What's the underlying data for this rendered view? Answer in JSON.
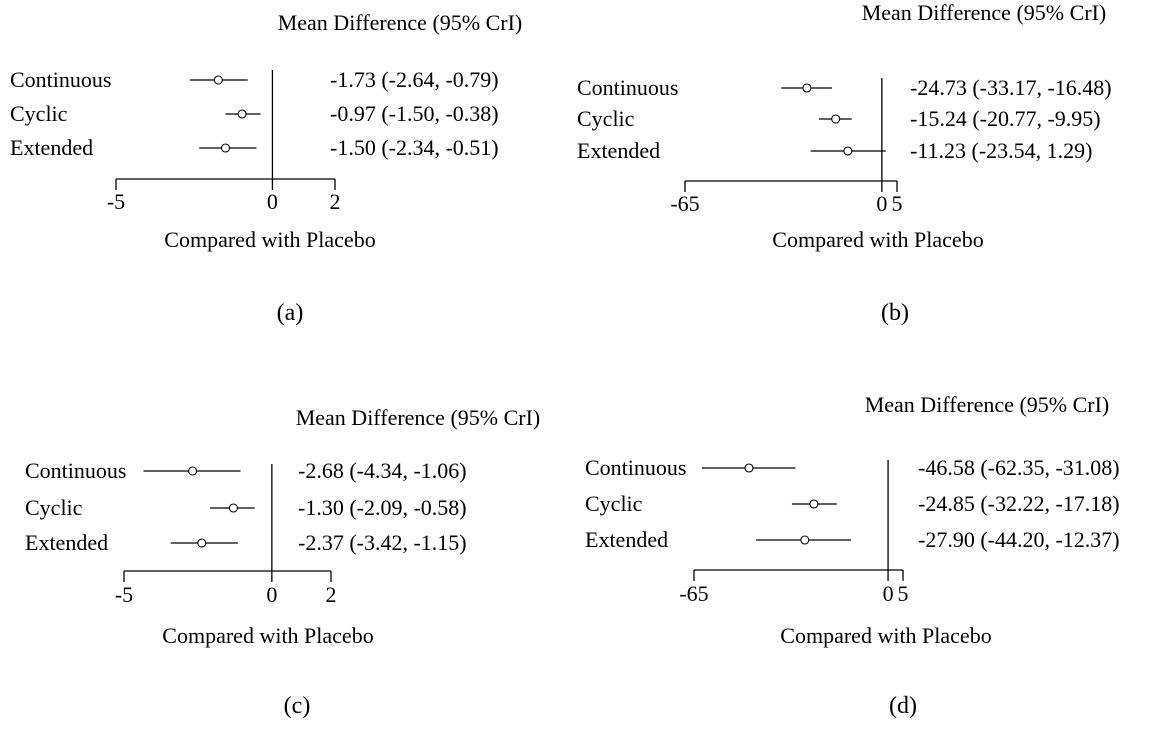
{
  "chart_data": [
    {
      "panel": "(a)",
      "type": "forest",
      "header": "Mean Difference (95% CrI)",
      "xlabel": "Compared with Placebo",
      "xlim": [
        -5,
        2
      ],
      "ticks": [
        -5,
        0,
        2
      ],
      "reference_line": 0,
      "rows": [
        {
          "label": "Continuous",
          "estimate": -1.73,
          "lower": -2.64,
          "upper": -0.79,
          "text": "-1.73 (-2.64, -0.79)"
        },
        {
          "label": "Cyclic",
          "estimate": -0.97,
          "lower": -1.5,
          "upper": -0.38,
          "text": "-0.97 (-1.50, -0.38)"
        },
        {
          "label": "Extended",
          "estimate": -1.5,
          "lower": -2.34,
          "upper": -0.51,
          "text": "-1.50 (-2.34, -0.51)"
        }
      ]
    },
    {
      "panel": "(b)",
      "type": "forest",
      "header": "Mean Difference (95% CrI)",
      "xlabel": "Compared with Placebo",
      "xlim": [
        -65,
        5
      ],
      "ticks": [
        -65,
        0,
        5
      ],
      "reference_line": 0,
      "rows": [
        {
          "label": "Continuous",
          "estimate": -24.73,
          "lower": -33.17,
          "upper": -16.48,
          "text": "-24.73 (-33.17, -16.48)"
        },
        {
          "label": "Cyclic",
          "estimate": -15.24,
          "lower": -20.77,
          "upper": -9.95,
          "text": "-15.24 (-20.77, -9.95)"
        },
        {
          "label": "Extended",
          "estimate": -11.23,
          "lower": -23.54,
          "upper": 1.29,
          "text": "-11.23 (-23.54, 1.29)"
        }
      ]
    },
    {
      "panel": "(c)",
      "type": "forest",
      "header": "Mean Difference (95% CrI)",
      "xlabel": "Compared with Placebo",
      "xlim": [
        -5,
        2
      ],
      "ticks": [
        -5,
        0,
        2
      ],
      "reference_line": 0,
      "rows": [
        {
          "label": "Continuous",
          "estimate": -2.68,
          "lower": -4.34,
          "upper": -1.06,
          "text": "-2.68 (-4.34, -1.06)"
        },
        {
          "label": "Cyclic",
          "estimate": -1.3,
          "lower": -2.09,
          "upper": -0.58,
          "text": "-1.30 (-2.09, -0.58)"
        },
        {
          "label": "Extended",
          "estimate": -2.37,
          "lower": -3.42,
          "upper": -1.15,
          "text": "-2.37 (-3.42, -1.15)"
        }
      ]
    },
    {
      "panel": "(d)",
      "type": "forest",
      "header": "Mean Difference (95% CrI)",
      "xlabel": "Compared with Placebo",
      "xlim": [
        -65,
        5
      ],
      "ticks": [
        -65,
        0,
        5
      ],
      "reference_line": 0,
      "rows": [
        {
          "label": "Continuous",
          "estimate": -46.58,
          "lower": -62.35,
          "upper": -31.08,
          "text": "-46.58 (-62.35, -31.08)"
        },
        {
          "label": "Cyclic",
          "estimate": -24.85,
          "lower": -32.22,
          "upper": -17.18,
          "text": "-24.85 (-32.22, -17.18)"
        },
        {
          "label": "Extended",
          "estimate": -27.9,
          "lower": -44.2,
          "upper": -12.37,
          "text": "-27.90 (-44.20, -12.37)"
        }
      ]
    }
  ]
}
